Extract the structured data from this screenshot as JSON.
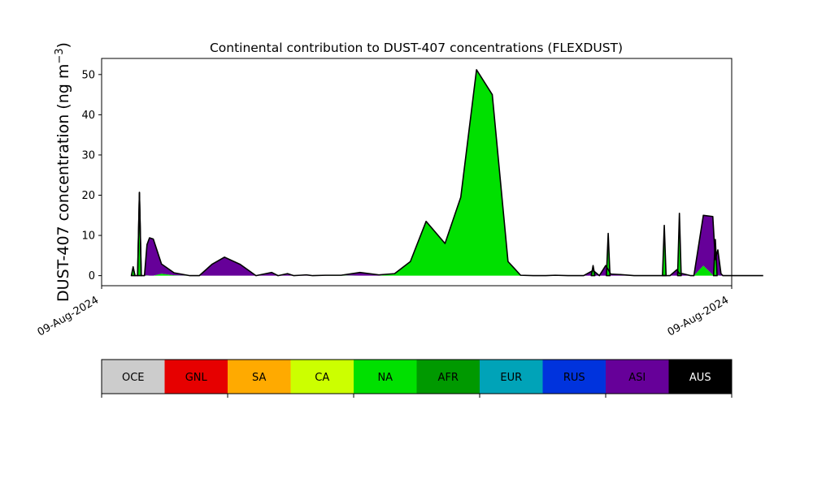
{
  "chart_data": {
    "type": "area",
    "title": "Continental contribution to DUST-407 concentrations (FLEXDUST)",
    "ylabel": "DUST-407 concentration (ng m",
    "ylabel_superscript": "−3",
    "ylabel_suffix": ")",
    "xlabel": "",
    "ylim": [
      -2.5,
      54
    ],
    "yticks": [
      0,
      10,
      20,
      30,
      40,
      50
    ],
    "xticks": [
      "09-Aug-2024",
      "09-Aug-2024"
    ],
    "stacked": true,
    "x": [
      0,
      0.3,
      0.7,
      1.0,
      1.3,
      1.8,
      2.2,
      2.6,
      3.2,
      4.5,
      6.5,
      9.0,
      10.5,
      12.5,
      14.5,
      17.0,
      19.5,
      22.0,
      23.0,
      24.5,
      25.5,
      26.5,
      27.5,
      28.5,
      30.5,
      33.0,
      36.0,
      39.0,
      41.5,
      44.0,
      46.5,
      49.5,
      52.0,
      54.5,
      57.0,
      59.5,
      61.5,
      63.5,
      65.5,
      67.0,
      69.0,
      71.5,
      73.0,
      74.0,
      75.0,
      75.4,
      75.8,
      77.0,
      79.5,
      82.0,
      84.0,
      84.3,
      84.7,
      85.2,
      86.3,
      86.7,
      87.2,
      88.5,
      89.0,
      90.5,
      92.0,
      92.4,
      92.8,
      93.3,
      93.6,
      94.2,
      100
    ],
    "x_range": [
      -5,
      95
    ],
    "series": [
      {
        "name": "NA",
        "values": [
          1.5,
          0.0,
          0.0,
          2.5,
          0.0,
          0.0,
          0.1,
          0.0,
          0.0,
          0.5,
          0.1,
          0.0,
          0.0,
          0.0,
          0.0,
          0.0,
          0.0,
          0.0,
          0.0,
          0.0,
          0.0,
          0.0,
          0.0,
          0.0,
          0.0,
          0.1,
          0.0,
          0.0,
          0.5,
          3.5,
          13.5,
          8.0,
          19.5,
          51.2,
          45.0,
          3.5,
          0.1,
          0.0,
          0.0,
          0.0,
          0.0,
          0.0,
          0.0,
          0.0,
          0.0,
          0.0,
          0.0,
          0.0,
          0.0,
          0.0,
          0.0,
          0.0,
          0.0,
          0.0,
          0.0,
          0.0,
          0.0,
          0.0,
          0.0,
          2.5,
          0.2,
          2.0,
          0.1,
          0.0,
          0.0,
          0.0,
          0.0
        ]
      },
      {
        "name": "ASI",
        "values": [
          0.3,
          0.0,
          0.0,
          17.5,
          0.0,
          0.0,
          7.6,
          9.4,
          9.1,
          2.4,
          0.6,
          0.0,
          0.0,
          2.8,
          4.6,
          2.8,
          0.0,
          0.8,
          0.0,
          0.5,
          0.0,
          0.1,
          0.2,
          0.0,
          0.1,
          0.0,
          0.8,
          0.2,
          0.0,
          0.0,
          0.0,
          0.0,
          0.0,
          0.0,
          0.0,
          0.0,
          0.0,
          0.0,
          0.0,
          0.1,
          0.0,
          0.0,
          1.3,
          0.0,
          2.5,
          1.5,
          0.4,
          0.3,
          0.0,
          0.0,
          0.0,
          0.0,
          0.0,
          0.0,
          1.5,
          0.5,
          0.5,
          0.0,
          0.0,
          12.5,
          14.5,
          2.0,
          6.3,
          0.5,
          0.0,
          0.0,
          0.0
        ]
      },
      {
        "name": "AUS",
        "values": [
          0.2,
          0.0,
          0.0,
          0.7,
          0.0,
          0.0,
          0.0,
          0.0,
          0.0,
          0.0,
          0.0,
          0.0,
          0.0,
          0.0,
          0.0,
          0.0,
          0.0,
          0.0,
          0.0,
          0.0,
          0.0,
          0.0,
          0.0,
          0.0,
          0.0,
          0.0,
          0.0,
          0.0,
          0.0,
          0.0,
          0.0,
          0.0,
          0.0,
          0.0,
          0.0,
          0.0,
          0.0,
          0.0,
          0.0,
          0.0,
          0.0,
          0.0,
          0.0,
          0.0,
          0.0,
          0.0,
          0.0,
          0.0,
          0.0,
          0.0,
          0.0,
          0.0,
          0.0,
          0.0,
          0.0,
          0.0,
          0.0,
          0.0,
          0.0,
          0.0,
          0.0,
          0.0,
          0.0,
          0.0,
          0.0,
          0.0,
          0.0
        ]
      }
    ],
    "total_spikes": [
      {
        "x": 0.0,
        "y": 2.2
      },
      {
        "x": 1.0,
        "y": 20.7
      },
      {
        "x": 73.0,
        "y": 2.5
      },
      {
        "x": 75.4,
        "y": 10.5
      },
      {
        "x": 84.3,
        "y": 12.5
      },
      {
        "x": 86.7,
        "y": 15.5
      },
      {
        "x": 92.4,
        "y": 9.0
      }
    ],
    "legend": {
      "placement": "bottom",
      "entries": [
        {
          "label": "OCE",
          "color": "#cccccc",
          "text_color": "#000000"
        },
        {
          "label": "GNL",
          "color": "#e60000",
          "text_color": "#000000"
        },
        {
          "label": "SA",
          "color": "#ffaa00",
          "text_color": "#000000"
        },
        {
          "label": "CA",
          "color": "#ccff00",
          "text_color": "#000000"
        },
        {
          "label": "NA",
          "color": "#00e000",
          "text_color": "#000000"
        },
        {
          "label": "AFR",
          "color": "#009900",
          "text_color": "#000000"
        },
        {
          "label": "EUR",
          "color": "#00a3b8",
          "text_color": "#000000"
        },
        {
          "label": "RUS",
          "color": "#0033dd",
          "text_color": "#000000"
        },
        {
          "label": "ASI",
          "color": "#660099",
          "text_color": "#000000"
        },
        {
          "label": "AUS",
          "color": "#000000",
          "text_color": "#ffffff"
        }
      ]
    },
    "grid": false
  }
}
